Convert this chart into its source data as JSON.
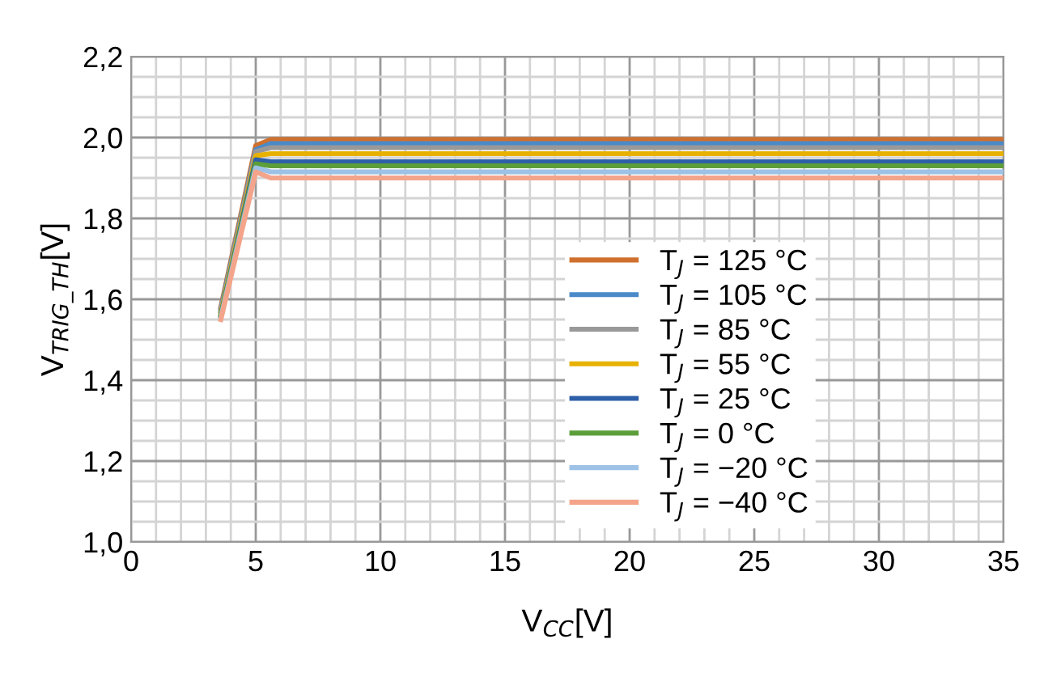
{
  "chart_data": {
    "type": "line",
    "xlabel": "V$_{CC}$[V]",
    "ylabel": "V$_{TRIG_TH}$[V]",
    "xlim": [
      0,
      35
    ],
    "xticks": [
      0,
      5,
      10,
      15,
      20,
      25,
      30,
      35
    ],
    "ylim": [
      1.0,
      2.2
    ],
    "yticks": [
      {
        "value": 1.0,
        "label": "1,0"
      },
      {
        "value": 1.2,
        "label": "1,2"
      },
      {
        "value": 1.4,
        "label": "1,4"
      },
      {
        "value": 1.6,
        "label": "1,6"
      },
      {
        "value": 1.8,
        "label": "1,8"
      },
      {
        "value": 2.0,
        "label": "2,0"
      },
      {
        "value": 2.2,
        "label": "2,2"
      }
    ],
    "grid": true,
    "legend": "bottom right",
    "marker": "none",
    "line_style": "solid",
    "x": [
      3.6,
      5.0,
      5.6,
      35
    ],
    "series": [
      {
        "name": "T$_{J}$ = 125 °C",
        "color": "#d0702e",
        "values": [
          1.58,
          1.98,
          1.995,
          1.995
        ]
      },
      {
        "name": "T$_{J}$ = 105 °C",
        "color": "#4a8ac8",
        "values": [
          1.575,
          1.97,
          1.985,
          1.985
        ]
      },
      {
        "name": "T$_{J}$ = 85 °C",
        "color": "#999999",
        "values": [
          1.57,
          1.965,
          1.975,
          1.975
        ]
      },
      {
        "name": "T$_{J}$ = 55 °C",
        "color": "#e8b100",
        "values": [
          1.565,
          1.955,
          1.96,
          1.96
        ]
      },
      {
        "name": "T$_{J}$ = 25 °C",
        "color": "#2e5fa8",
        "values": [
          1.56,
          1.945,
          1.94,
          1.94
        ]
      },
      {
        "name": "T$_{J}$ = 0 °C",
        "color": "#5c9e3a",
        "values": [
          1.56,
          1.935,
          1.93,
          1.93
        ]
      },
      {
        "name": "T$_{J}$ = −20 °C",
        "color": "#9dc2e6",
        "values": [
          1.555,
          1.925,
          1.915,
          1.915
        ]
      },
      {
        "name": "T$_{J}$ = −40 °C",
        "color": "#f4a48a",
        "values": [
          1.55,
          1.915,
          1.9,
          1.9
        ]
      }
    ]
  }
}
